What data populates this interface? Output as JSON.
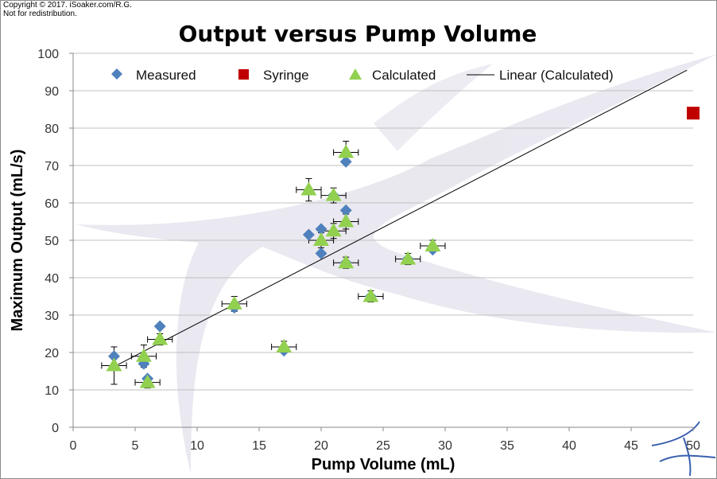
{
  "copyright": "Copyright © 2017. iSoaker.com/R.G.\nNot for redistribution.",
  "colors": {
    "measured": "#4f81bd",
    "syringe": "#c00000",
    "calculated": "#92d050",
    "trendline": "#000000",
    "grid": "#c0c0c0"
  },
  "chart_data": {
    "type": "scatter",
    "title": "Output versus Pump Volume",
    "xlabel": "Pump Volume (mL)",
    "ylabel": "Maximum Output (mL/s)",
    "xlim": [
      0,
      50
    ],
    "ylim": [
      0,
      100
    ],
    "x_ticks": [
      0,
      5,
      10,
      15,
      20,
      25,
      30,
      35,
      40,
      45,
      50
    ],
    "y_ticks": [
      0,
      10,
      20,
      30,
      40,
      50,
      60,
      70,
      80,
      90,
      100
    ],
    "grid": "horizontal",
    "legend_position": "top",
    "series": [
      {
        "name": "Measured",
        "marker": "diamond",
        "points": [
          {
            "x": 3.3,
            "y": 19
          },
          {
            "x": 5.7,
            "y": 17
          },
          {
            "x": 6,
            "y": 13
          },
          {
            "x": 7,
            "y": 27
          },
          {
            "x": 13,
            "y": 32
          },
          {
            "x": 17,
            "y": 20.5
          },
          {
            "x": 19,
            "y": 51.5
          },
          {
            "x": 20,
            "y": 53
          },
          {
            "x": 20,
            "y": 46.5
          },
          {
            "x": 21,
            "y": 62
          },
          {
            "x": 22,
            "y": 71
          },
          {
            "x": 22,
            "y": 58
          },
          {
            "x": 22,
            "y": 44
          },
          {
            "x": 24,
            "y": 35
          },
          {
            "x": 27,
            "y": 45
          },
          {
            "x": 29,
            "y": 47.5
          }
        ]
      },
      {
        "name": "Syringe",
        "marker": "square",
        "points": [
          {
            "x": 50,
            "y": 84
          }
        ]
      },
      {
        "name": "Calculated",
        "marker": "triangle",
        "points": [
          {
            "x": 3.3,
            "y": 16.5,
            "xerr": 1,
            "yerr": 5
          },
          {
            "x": 5.7,
            "y": 19,
            "xerr": 1,
            "yerr": 3
          },
          {
            "x": 6,
            "y": 12,
            "xerr": 1,
            "yerr": 1.5
          },
          {
            "x": 7,
            "y": 23.5,
            "xerr": 1,
            "yerr": 1.5
          },
          {
            "x": 13,
            "y": 33,
            "xerr": 1,
            "yerr": 2
          },
          {
            "x": 17,
            "y": 21.5,
            "xerr": 1,
            "yerr": 1.5
          },
          {
            "x": 19,
            "y": 63.5,
            "xerr": 1,
            "yerr": 3
          },
          {
            "x": 20,
            "y": 50,
            "xerr": 1,
            "yerr": 2
          },
          {
            "x": 21,
            "y": 62,
            "xerr": 1,
            "yerr": 2
          },
          {
            "x": 21,
            "y": 52.5,
            "xerr": 1,
            "yerr": 2
          },
          {
            "x": 22,
            "y": 73.5,
            "xerr": 1,
            "yerr": 3
          },
          {
            "x": 22,
            "y": 55,
            "xerr": 1,
            "yerr": 2
          },
          {
            "x": 22,
            "y": 44,
            "xerr": 1,
            "yerr": 1.5
          },
          {
            "x": 24,
            "y": 35,
            "xerr": 1,
            "yerr": 1.5
          },
          {
            "x": 27,
            "y": 45,
            "xerr": 1,
            "yerr": 1.5
          },
          {
            "x": 29,
            "y": 48.5,
            "xerr": 1,
            "yerr": 1.5
          }
        ]
      },
      {
        "name": "Linear (Calculated)",
        "marker": "line",
        "line": [
          {
            "x": 3.3,
            "y": 16.2
          },
          {
            "x": 49.5,
            "y": 95.5
          }
        ]
      }
    ]
  }
}
